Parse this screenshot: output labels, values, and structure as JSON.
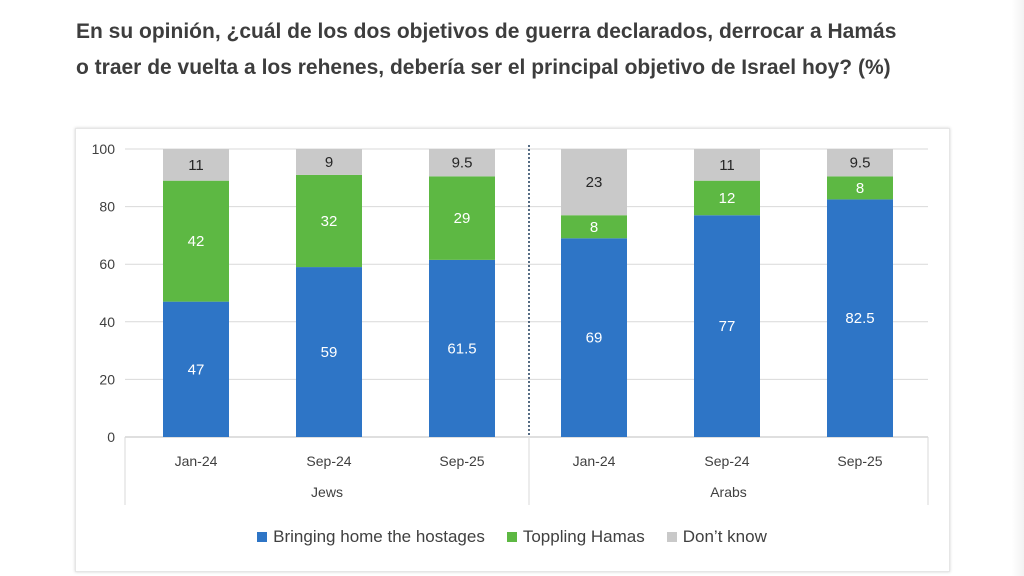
{
  "title": "En su opinión, ¿cuál de los dos objetivos de guerra declarados, derrocar a Hamás o traer de vuelta a los rehenes, debería ser el principal objetivo de Israel hoy? (%)",
  "chart_data": {
    "type": "bar",
    "stacked": true,
    "title": "En su opinión, ¿cuál de los dos objetivos de guerra declarados, derrocar a Hamás o traer de vuelta a los rehenes, debería ser el principal objetivo de Israel hoy? (%)",
    "xlabel": "",
    "ylabel": "",
    "ylim": [
      0,
      100
    ],
    "yticks": [
      0,
      20,
      40,
      60,
      80,
      100
    ],
    "grid": true,
    "legend_position": "bottom",
    "groups": [
      {
        "name": "Jews",
        "categories": [
          "Jan-24",
          "Sep-24",
          "Sep-25"
        ]
      },
      {
        "name": "Arabs",
        "categories": [
          "Jan-24",
          "Sep-24",
          "Sep-25"
        ]
      }
    ],
    "categories": [
      "Jan-24",
      "Sep-24",
      "Sep-25",
      "Jan-24",
      "Sep-24",
      "Sep-25"
    ],
    "series": [
      {
        "name": "Bringing home the hostages",
        "color": "#2E75C6",
        "label_color": "#ffffff",
        "values": [
          47,
          59,
          61.5,
          69,
          77,
          82.5
        ],
        "labels": [
          "47",
          "59",
          "61.5",
          "69",
          "77",
          "82.5"
        ]
      },
      {
        "name": "Toppling Hamas",
        "color": "#5DB843",
        "label_color": "#ffffff",
        "values": [
          42,
          32,
          29,
          8,
          12,
          8
        ],
        "labels": [
          "42",
          "32",
          "29",
          "8",
          "12",
          "8"
        ]
      },
      {
        "name": "Don’t know",
        "color": "#C9C9C9",
        "label_color": "#262626",
        "values": [
          11,
          9,
          9.5,
          23,
          11,
          9.5
        ],
        "labels": [
          "11",
          "9",
          "9.5",
          "23",
          "11",
          "9.5"
        ]
      }
    ]
  }
}
